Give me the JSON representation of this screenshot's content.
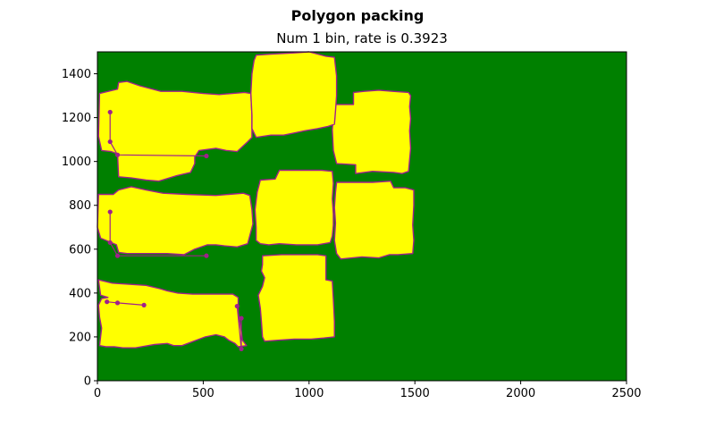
{
  "chart_data": {
    "type": "polygon_packing",
    "title": "Polygon packing",
    "subtitle": "Num 1 bin, rate is 0.3923",
    "xlabel": "",
    "ylabel": "",
    "xlim": [
      0,
      2500
    ],
    "ylim": [
      0,
      1500
    ],
    "xticks": [
      0,
      500,
      1000,
      1500,
      2000,
      2500
    ],
    "yticks": [
      0,
      200,
      400,
      600,
      800,
      1000,
      1200,
      1400
    ],
    "bin": {
      "width": 2500,
      "height": 1500,
      "color": "#008000"
    },
    "polygon_fill": "#ffff00",
    "polygon_edge": "#a0208c",
    "polygons": [
      {
        "name": "piece-1",
        "points": [
          [
            10,
            1310
          ],
          [
            95,
            1330
          ],
          [
            100,
            1360
          ],
          [
            140,
            1365
          ],
          [
            200,
            1345
          ],
          [
            300,
            1320
          ],
          [
            400,
            1320
          ],
          [
            500,
            1310
          ],
          [
            575,
            1305
          ],
          [
            695,
            1315
          ],
          [
            725,
            1310
          ],
          [
            730,
            1210
          ],
          [
            730,
            1110
          ],
          [
            710,
            1090
          ],
          [
            660,
            1045
          ],
          [
            610,
            1050
          ],
          [
            560,
            1060
          ],
          [
            480,
            1050
          ],
          [
            460,
            1020
          ],
          [
            460,
            990
          ],
          [
            440,
            950
          ],
          [
            375,
            935
          ],
          [
            290,
            910
          ],
          [
            230,
            915
          ],
          [
            160,
            925
          ],
          [
            100,
            930
          ],
          [
            95,
            1035
          ],
          [
            65,
            1045
          ],
          [
            20,
            1050
          ],
          [
            5,
            1115
          ]
        ]
      },
      {
        "name": "piece-2",
        "points": [
          [
            5,
            850
          ],
          [
            75,
            850
          ],
          [
            100,
            870
          ],
          [
            160,
            885
          ],
          [
            230,
            870
          ],
          [
            310,
            855
          ],
          [
            420,
            850
          ],
          [
            560,
            845
          ],
          [
            620,
            850
          ],
          [
            690,
            855
          ],
          [
            720,
            845
          ],
          [
            730,
            780
          ],
          [
            735,
            715
          ],
          [
            710,
            625
          ],
          [
            660,
            610
          ],
          [
            600,
            615
          ],
          [
            560,
            620
          ],
          [
            520,
            620
          ],
          [
            460,
            600
          ],
          [
            410,
            575
          ],
          [
            330,
            580
          ],
          [
            250,
            580
          ],
          [
            140,
            580
          ],
          [
            100,
            585
          ],
          [
            90,
            620
          ],
          [
            65,
            630
          ],
          [
            15,
            650
          ],
          [
            0,
            700
          ]
        ]
      },
      {
        "name": "piece-3",
        "points": [
          [
            5,
            460
          ],
          [
            70,
            445
          ],
          [
            150,
            440
          ],
          [
            230,
            435
          ],
          [
            295,
            420
          ],
          [
            330,
            410
          ],
          [
            380,
            400
          ],
          [
            450,
            395
          ],
          [
            570,
            395
          ],
          [
            640,
            395
          ],
          [
            665,
            380
          ],
          [
            665,
            310
          ],
          [
            670,
            280
          ],
          [
            680,
            225
          ],
          [
            685,
            185
          ],
          [
            705,
            160
          ],
          [
            665,
            155
          ],
          [
            650,
            170
          ],
          [
            620,
            185
          ],
          [
            600,
            200
          ],
          [
            560,
            210
          ],
          [
            510,
            200
          ],
          [
            455,
            180
          ],
          [
            400,
            160
          ],
          [
            360,
            160
          ],
          [
            330,
            170
          ],
          [
            270,
            165
          ],
          [
            180,
            150
          ],
          [
            120,
            150
          ],
          [
            80,
            155
          ],
          [
            40,
            155
          ],
          [
            10,
            160
          ],
          [
            20,
            240
          ],
          [
            10,
            290
          ],
          [
            5,
            345
          ],
          [
            20,
            375
          ],
          [
            50,
            380
          ],
          [
            15,
            390
          ]
        ]
      },
      {
        "name": "piece-4",
        "points": [
          [
            1120,
            1260
          ],
          [
            1210,
            1260
          ],
          [
            1210,
            1315
          ],
          [
            1260,
            1320
          ],
          [
            1330,
            1325
          ],
          [
            1395,
            1320
          ],
          [
            1470,
            1315
          ],
          [
            1480,
            1300
          ],
          [
            1475,
            1250
          ],
          [
            1480,
            1195
          ],
          [
            1475,
            1140
          ],
          [
            1480,
            1060
          ],
          [
            1470,
            955
          ],
          [
            1440,
            945
          ],
          [
            1400,
            950
          ],
          [
            1300,
            955
          ],
          [
            1220,
            945
          ],
          [
            1220,
            985
          ],
          [
            1130,
            990
          ],
          [
            1115,
            1050
          ],
          [
            1110,
            1145
          ],
          [
            1115,
            1205
          ]
        ]
      },
      {
        "name": "piece-5",
        "points": [
          [
            750,
            1485
          ],
          [
            820,
            1490
          ],
          [
            930,
            1495
          ],
          [
            1000,
            1500
          ],
          [
            1040,
            1490
          ],
          [
            1080,
            1480
          ],
          [
            1120,
            1475
          ],
          [
            1130,
            1390
          ],
          [
            1130,
            1300
          ],
          [
            1125,
            1230
          ],
          [
            1120,
            1170
          ],
          [
            1090,
            1160
          ],
          [
            1040,
            1150
          ],
          [
            980,
            1140
          ],
          [
            930,
            1130
          ],
          [
            880,
            1120
          ],
          [
            820,
            1120
          ],
          [
            750,
            1110
          ],
          [
            730,
            1150
          ],
          [
            730,
            1210
          ],
          [
            725,
            1310
          ],
          [
            730,
            1400
          ],
          [
            740,
            1460
          ]
        ]
      },
      {
        "name": "piece-6",
        "points": [
          [
            770,
            915
          ],
          [
            840,
            920
          ],
          [
            860,
            960
          ],
          [
            930,
            960
          ],
          [
            1000,
            960
          ],
          [
            1060,
            960
          ],
          [
            1110,
            955
          ],
          [
            1115,
            900
          ],
          [
            1110,
            830
          ],
          [
            1115,
            760
          ],
          [
            1115,
            710
          ],
          [
            1110,
            660
          ],
          [
            1100,
            630
          ],
          [
            1040,
            620
          ],
          [
            940,
            620
          ],
          [
            860,
            625
          ],
          [
            810,
            620
          ],
          [
            770,
            625
          ],
          [
            750,
            640
          ],
          [
            750,
            700
          ],
          [
            745,
            780
          ],
          [
            755,
            860
          ]
        ]
      },
      {
        "name": "piece-7",
        "points": [
          [
            1130,
            905
          ],
          [
            1200,
            905
          ],
          [
            1300,
            905
          ],
          [
            1385,
            910
          ],
          [
            1400,
            880
          ],
          [
            1455,
            880
          ],
          [
            1495,
            870
          ],
          [
            1495,
            800
          ],
          [
            1490,
            710
          ],
          [
            1495,
            640
          ],
          [
            1490,
            580
          ],
          [
            1420,
            575
          ],
          [
            1380,
            575
          ],
          [
            1330,
            560
          ],
          [
            1250,
            565
          ],
          [
            1150,
            555
          ],
          [
            1130,
            580
          ],
          [
            1120,
            640
          ],
          [
            1125,
            720
          ],
          [
            1120,
            790
          ],
          [
            1125,
            860
          ]
        ]
      },
      {
        "name": "piece-8",
        "points": [
          [
            780,
            570
          ],
          [
            870,
            575
          ],
          [
            960,
            575
          ],
          [
            1040,
            575
          ],
          [
            1080,
            570
          ],
          [
            1080,
            460
          ],
          [
            1110,
            455
          ],
          [
            1115,
            370
          ],
          [
            1120,
            270
          ],
          [
            1120,
            200
          ],
          [
            1070,
            195
          ],
          [
            1010,
            190
          ],
          [
            930,
            190
          ],
          [
            860,
            185
          ],
          [
            790,
            180
          ],
          [
            780,
            200
          ],
          [
            775,
            270
          ],
          [
            770,
            330
          ],
          [
            760,
            390
          ],
          [
            780,
            430
          ],
          [
            790,
            470
          ],
          [
            775,
            500
          ],
          [
            780,
            530
          ]
        ]
      }
    ],
    "markers": [
      {
        "name": "marker-1",
        "points": [
          [
            60,
            1225
          ],
          [
            60,
            1090
          ],
          [
            95,
            1030
          ],
          [
            515,
            1025
          ]
        ]
      },
      {
        "name": "marker-2",
        "points": [
          [
            60,
            770
          ],
          [
            60,
            630
          ],
          [
            95,
            570
          ],
          [
            515,
            570
          ]
        ]
      },
      {
        "name": "marker-3",
        "points": [
          [
            220,
            345
          ],
          [
            95,
            355
          ],
          [
            45,
            360
          ]
        ]
      },
      {
        "name": "marker-4",
        "points": [
          [
            680,
            285
          ],
          [
            680,
            145
          ],
          [
            660,
            340
          ]
        ]
      }
    ]
  }
}
